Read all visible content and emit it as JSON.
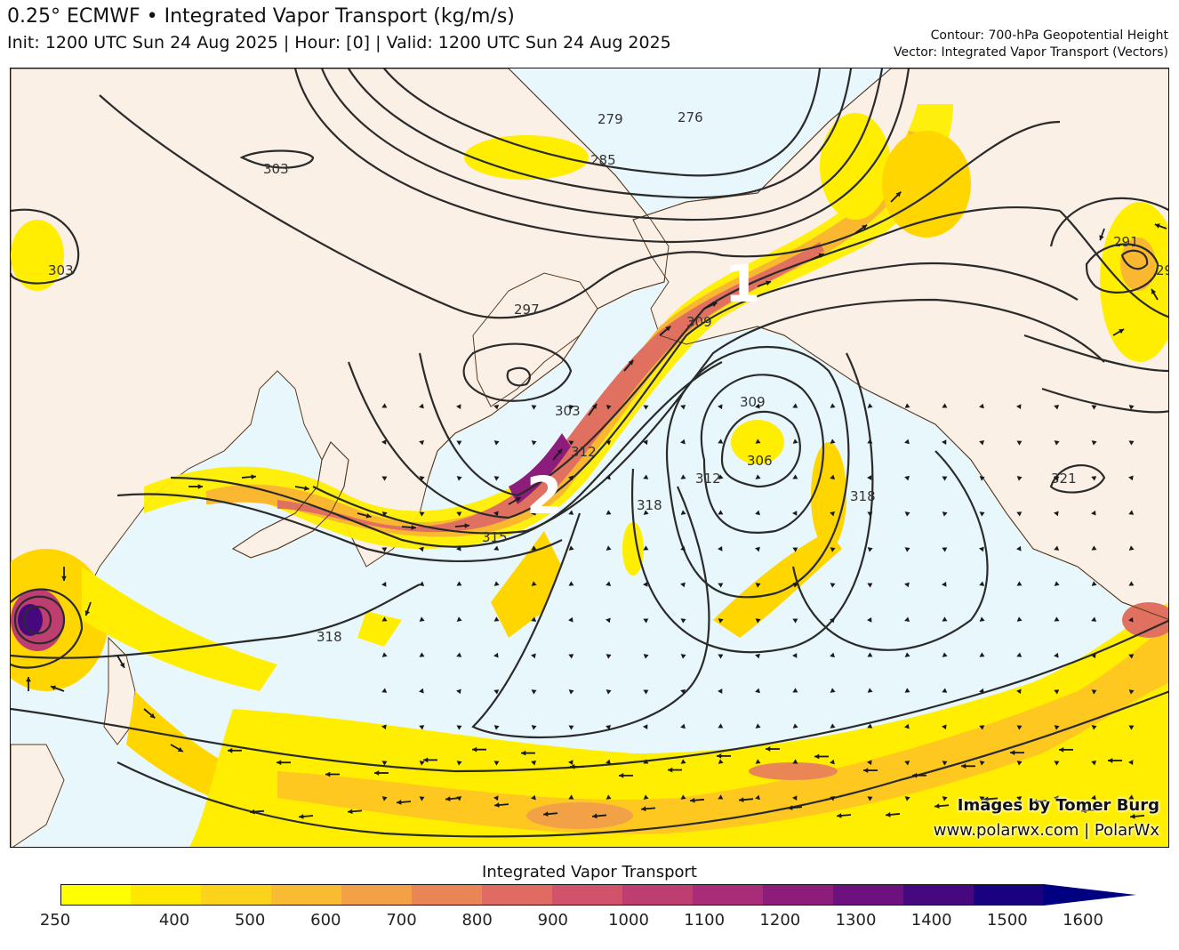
{
  "header": {
    "title": "0.25° ECMWF • Integrated Vapor Transport (kg/m/s)",
    "subtitle": "Init: 1200 UTC Sun 24 Aug 2025 | Hour: [0] | Valid: 1200 UTC Sun 24 Aug 2025",
    "contour_info": "Contour: 700-hPa Geopotential Height",
    "vector_info": "Vector: Integrated Vapor Transport (Vectors)"
  },
  "credits": {
    "author": "Images by Tomer Burg",
    "site": "www.polarwx.com | PolarWx"
  },
  "map": {
    "annotations": [
      "1",
      "2"
    ],
    "contour_labels": [
      "303",
      "303",
      "279",
      "276",
      "285",
      "297",
      "309",
      "303",
      "312",
      "315",
      "318",
      "312",
      "309",
      "306",
      "318",
      "318",
      "321",
      "291",
      "29"
    ]
  },
  "colorbar": {
    "title": "Integrated Vapor Transport",
    "ticks": [
      "250",
      "400",
      "500",
      "600",
      "700",
      "800",
      "900",
      "1000",
      "1100",
      "1200",
      "1300",
      "1400",
      "1500",
      "1600"
    ],
    "colors": [
      "#ffff00",
      "#ffe800",
      "#fdd21a",
      "#f9bb32",
      "#f3a147",
      "#ea8656",
      "#df6b62",
      "#d1536b",
      "#bf3e72",
      "#a82c77",
      "#8d1d7b",
      "#6c117d",
      "#46087f",
      "#1a0180",
      "#000080"
    ]
  },
  "colors": {
    "land": "#faf0e6",
    "ocean": "#e8f7fc",
    "contour": "#2b2b2b"
  }
}
